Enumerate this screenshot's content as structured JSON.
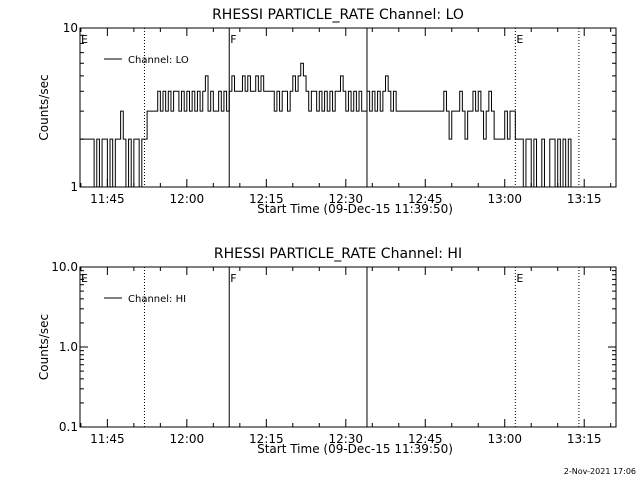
{
  "chart_data": [
    {
      "type": "line",
      "title": "RHESSI PARTICLE_RATE Channel: LO",
      "xlabel": "Start Time (09-Dec-15 11:39:50)",
      "ylabel": "Counts/sec",
      "x_ticks": [
        "11:45",
        "12:00",
        "12:15",
        "12:30",
        "12:45",
        "13:00",
        "13:15"
      ],
      "y_ticks": [
        "1",
        "10"
      ],
      "y_scale": "log",
      "ylim": [
        1,
        10
      ],
      "xlim": [
        "11:39:50",
        "13:21:00"
      ],
      "legend": "top-left",
      "legend_entries": [
        "Channel: LO"
      ],
      "markers": [
        {
          "label": "E",
          "time": "11:39:50",
          "style": "dotted"
        },
        {
          "label": "",
          "time": "11:52:00",
          "style": "dotted"
        },
        {
          "label": "F",
          "time": "12:08:00",
          "style": "solid"
        },
        {
          "label": "",
          "time": "12:34:00",
          "style": "solid"
        },
        {
          "label": "E",
          "time": "13:02:00",
          "style": "dotted"
        },
        {
          "label": "",
          "time": "13:14:00",
          "style": "dotted"
        }
      ],
      "series": [
        {
          "name": "Channel: LO",
          "points": [
            [
              "11:39:50",
              2
            ],
            [
              "11:42:00",
              2
            ],
            [
              "11:42:30",
              1
            ],
            [
              "11:43:00",
              2
            ],
            [
              "11:43:30",
              1
            ],
            [
              "11:44:00",
              2
            ],
            [
              "11:44:30",
              2
            ],
            [
              "11:45:00",
              1
            ],
            [
              "11:45:30",
              2
            ],
            [
              "11:46:00",
              1
            ],
            [
              "11:46:30",
              2
            ],
            [
              "11:47:00",
              2
            ],
            [
              "11:47:30",
              3
            ],
            [
              "11:48:00",
              2
            ],
            [
              "11:48:30",
              1
            ],
            [
              "11:49:00",
              2
            ],
            [
              "11:49:30",
              1
            ],
            [
              "11:50:00",
              2
            ],
            [
              "11:51:00",
              1
            ],
            [
              "11:51:30",
              2
            ],
            [
              "11:52:00",
              2
            ],
            [
              "11:52:30",
              3
            ],
            [
              "11:53:00",
              3
            ],
            [
              "11:54:00",
              3
            ],
            [
              "11:54:30",
              4
            ],
            [
              "11:55:00",
              3
            ],
            [
              "11:55:30",
              4
            ],
            [
              "11:56:00",
              3
            ],
            [
              "11:56:30",
              4
            ],
            [
              "11:57:00",
              3
            ],
            [
              "11:57:30",
              4
            ],
            [
              "11:58:00",
              4
            ],
            [
              "11:58:30",
              3
            ],
            [
              "11:59:00",
              4
            ],
            [
              "11:59:30",
              3
            ],
            [
              "12:00:00",
              4
            ],
            [
              "12:00:30",
              3
            ],
            [
              "12:01:00",
              4
            ],
            [
              "12:01:30",
              3
            ],
            [
              "12:02:00",
              4
            ],
            [
              "12:02:30",
              3
            ],
            [
              "12:03:00",
              4
            ],
            [
              "12:03:30",
              5
            ],
            [
              "12:04:00",
              3
            ],
            [
              "12:04:30",
              4
            ],
            [
              "12:05:00",
              3
            ],
            [
              "12:06:00",
              4
            ],
            [
              "12:06:30",
              3
            ],
            [
              "12:07:00",
              4
            ],
            [
              "12:07:30",
              3
            ],
            [
              "12:08:00",
              4
            ],
            [
              "12:08:30",
              5
            ],
            [
              "12:09:00",
              4
            ],
            [
              "12:10:00",
              4
            ],
            [
              "12:10:30",
              5
            ],
            [
              "12:11:00",
              4
            ],
            [
              "12:11:30",
              5
            ],
            [
              "12:12:00",
              4
            ],
            [
              "12:12:30",
              4
            ],
            [
              "12:13:00",
              5
            ],
            [
              "12:13:30",
              4
            ],
            [
              "12:14:00",
              5
            ],
            [
              "12:14:30",
              4
            ],
            [
              "12:15:00",
              4
            ],
            [
              "12:16:00",
              4
            ],
            [
              "12:16:30",
              3
            ],
            [
              "12:17:00",
              4
            ],
            [
              "12:17:30",
              3
            ],
            [
              "12:18:00",
              4
            ],
            [
              "12:18:30",
              4
            ],
            [
              "12:19:00",
              3
            ],
            [
              "12:19:30",
              4
            ],
            [
              "12:20:00",
              5
            ],
            [
              "12:20:30",
              4
            ],
            [
              "12:21:00",
              5
            ],
            [
              "12:21:30",
              6
            ],
            [
              "12:22:00",
              5
            ],
            [
              "12:22:30",
              4
            ],
            [
              "12:23:00",
              3
            ],
            [
              "12:23:30",
              4
            ],
            [
              "12:24:00",
              4
            ],
            [
              "12:24:30",
              3
            ],
            [
              "12:25:00",
              4
            ],
            [
              "12:25:30",
              3
            ],
            [
              "12:26:00",
              4
            ],
            [
              "12:26:30",
              3
            ],
            [
              "12:27:00",
              4
            ],
            [
              "12:27:30",
              3
            ],
            [
              "12:28:00",
              4
            ],
            [
              "12:29:00",
              5
            ],
            [
              "12:29:30",
              4
            ],
            [
              "12:30:00",
              3
            ],
            [
              "12:30:30",
              4
            ],
            [
              "12:31:00",
              3
            ],
            [
              "12:31:30",
              4
            ],
            [
              "12:32:00",
              3
            ],
            [
              "12:32:30",
              4
            ],
            [
              "12:33:00",
              3
            ],
            [
              "12:34:00",
              4
            ],
            [
              "12:34:30",
              3
            ],
            [
              "12:35:00",
              4
            ],
            [
              "12:35:30",
              3
            ],
            [
              "12:36:00",
              4
            ],
            [
              "12:36:30",
              3
            ],
            [
              "12:37:00",
              4
            ],
            [
              "12:37:30",
              5
            ],
            [
              "12:38:00",
              4
            ],
            [
              "12:38:30",
              3
            ],
            [
              "12:39:00",
              4
            ],
            [
              "12:39:30",
              3
            ],
            [
              "12:40:00",
              3
            ],
            [
              "12:41:00",
              3
            ],
            [
              "12:42:00",
              3
            ],
            [
              "12:43:00",
              3
            ],
            [
              "12:44:00",
              3
            ],
            [
              "12:45:00",
              3
            ],
            [
              "12:46:00",
              3
            ],
            [
              "12:47:00",
              3
            ],
            [
              "12:48:00",
              3
            ],
            [
              "12:48:30",
              4
            ],
            [
              "12:49:00",
              3
            ],
            [
              "12:49:30",
              2
            ],
            [
              "12:50:00",
              3
            ],
            [
              "12:50:30",
              3
            ],
            [
              "12:51:00",
              3
            ],
            [
              "12:51:30",
              4
            ],
            [
              "12:52:00",
              3
            ],
            [
              "12:52:30",
              2
            ],
            [
              "12:53:00",
              3
            ],
            [
              "12:53:30",
              3
            ],
            [
              "12:54:00",
              4
            ],
            [
              "12:54:30",
              3
            ],
            [
              "12:55:00",
              4
            ],
            [
              "12:55:30",
              3
            ],
            [
              "12:56:00",
              2
            ],
            [
              "12:56:30",
              3
            ],
            [
              "12:57:00",
              4
            ],
            [
              "12:57:30",
              3
            ],
            [
              "12:58:00",
              2
            ],
            [
              "12:58:30",
              2
            ],
            [
              "12:59:00",
              2
            ],
            [
              "13:00:00",
              3
            ],
            [
              "13:00:30",
              2
            ],
            [
              "13:01:00",
              3
            ],
            [
              "13:01:30",
              3
            ],
            [
              "13:02:00",
              2
            ],
            [
              "13:03:00",
              2
            ],
            [
              "13:03:30",
              1
            ],
            [
              "13:04:00",
              2
            ],
            [
              "13:04:30",
              2
            ],
            [
              "13:05:00",
              1
            ],
            [
              "13:05:30",
              2
            ],
            [
              "13:06:00",
              1
            ],
            [
              "13:07:00",
              2
            ],
            [
              "13:07:30",
              1
            ],
            [
              "13:08:00",
              1
            ],
            [
              "13:08:30",
              2
            ],
            [
              "13:09:00",
              2
            ],
            [
              "13:09:30",
              1
            ],
            [
              "13:10:00",
              2
            ],
            [
              "13:10:30",
              1
            ],
            [
              "13:11:00",
              2
            ],
            [
              "13:11:30",
              1
            ],
            [
              "13:12:00",
              2
            ],
            [
              "13:12:30",
              1
            ],
            [
              "13:13:00",
              1
            ]
          ]
        }
      ]
    },
    {
      "type": "line",
      "title": "RHESSI PARTICLE_RATE Channel: HI",
      "xlabel": "Start Time (09-Dec-15 11:39:50)",
      "ylabel": "Counts/sec",
      "x_ticks": [
        "11:45",
        "12:00",
        "12:15",
        "12:30",
        "12:45",
        "13:00",
        "13:15"
      ],
      "y_ticks": [
        "0.1",
        "1.0",
        "10.0"
      ],
      "y_scale": "log",
      "ylim": [
        0.1,
        10
      ],
      "xlim": [
        "11:39:50",
        "13:21:00"
      ],
      "legend": "top-left",
      "legend_entries": [
        "Channel: HI"
      ],
      "markers": [
        {
          "label": "E",
          "time": "11:39:50",
          "style": "dotted"
        },
        {
          "label": "",
          "time": "11:52:00",
          "style": "dotted"
        },
        {
          "label": "F",
          "time": "12:08:00",
          "style": "solid"
        },
        {
          "label": "",
          "time": "12:34:00",
          "style": "solid"
        },
        {
          "label": "E",
          "time": "13:02:00",
          "style": "dotted"
        },
        {
          "label": "",
          "time": "13:14:00",
          "style": "dotted"
        }
      ],
      "series": [
        {
          "name": "Channel: HI",
          "points": []
        }
      ]
    }
  ],
  "footer": {
    "timestamp": "2-Nov-2021 17:06"
  }
}
